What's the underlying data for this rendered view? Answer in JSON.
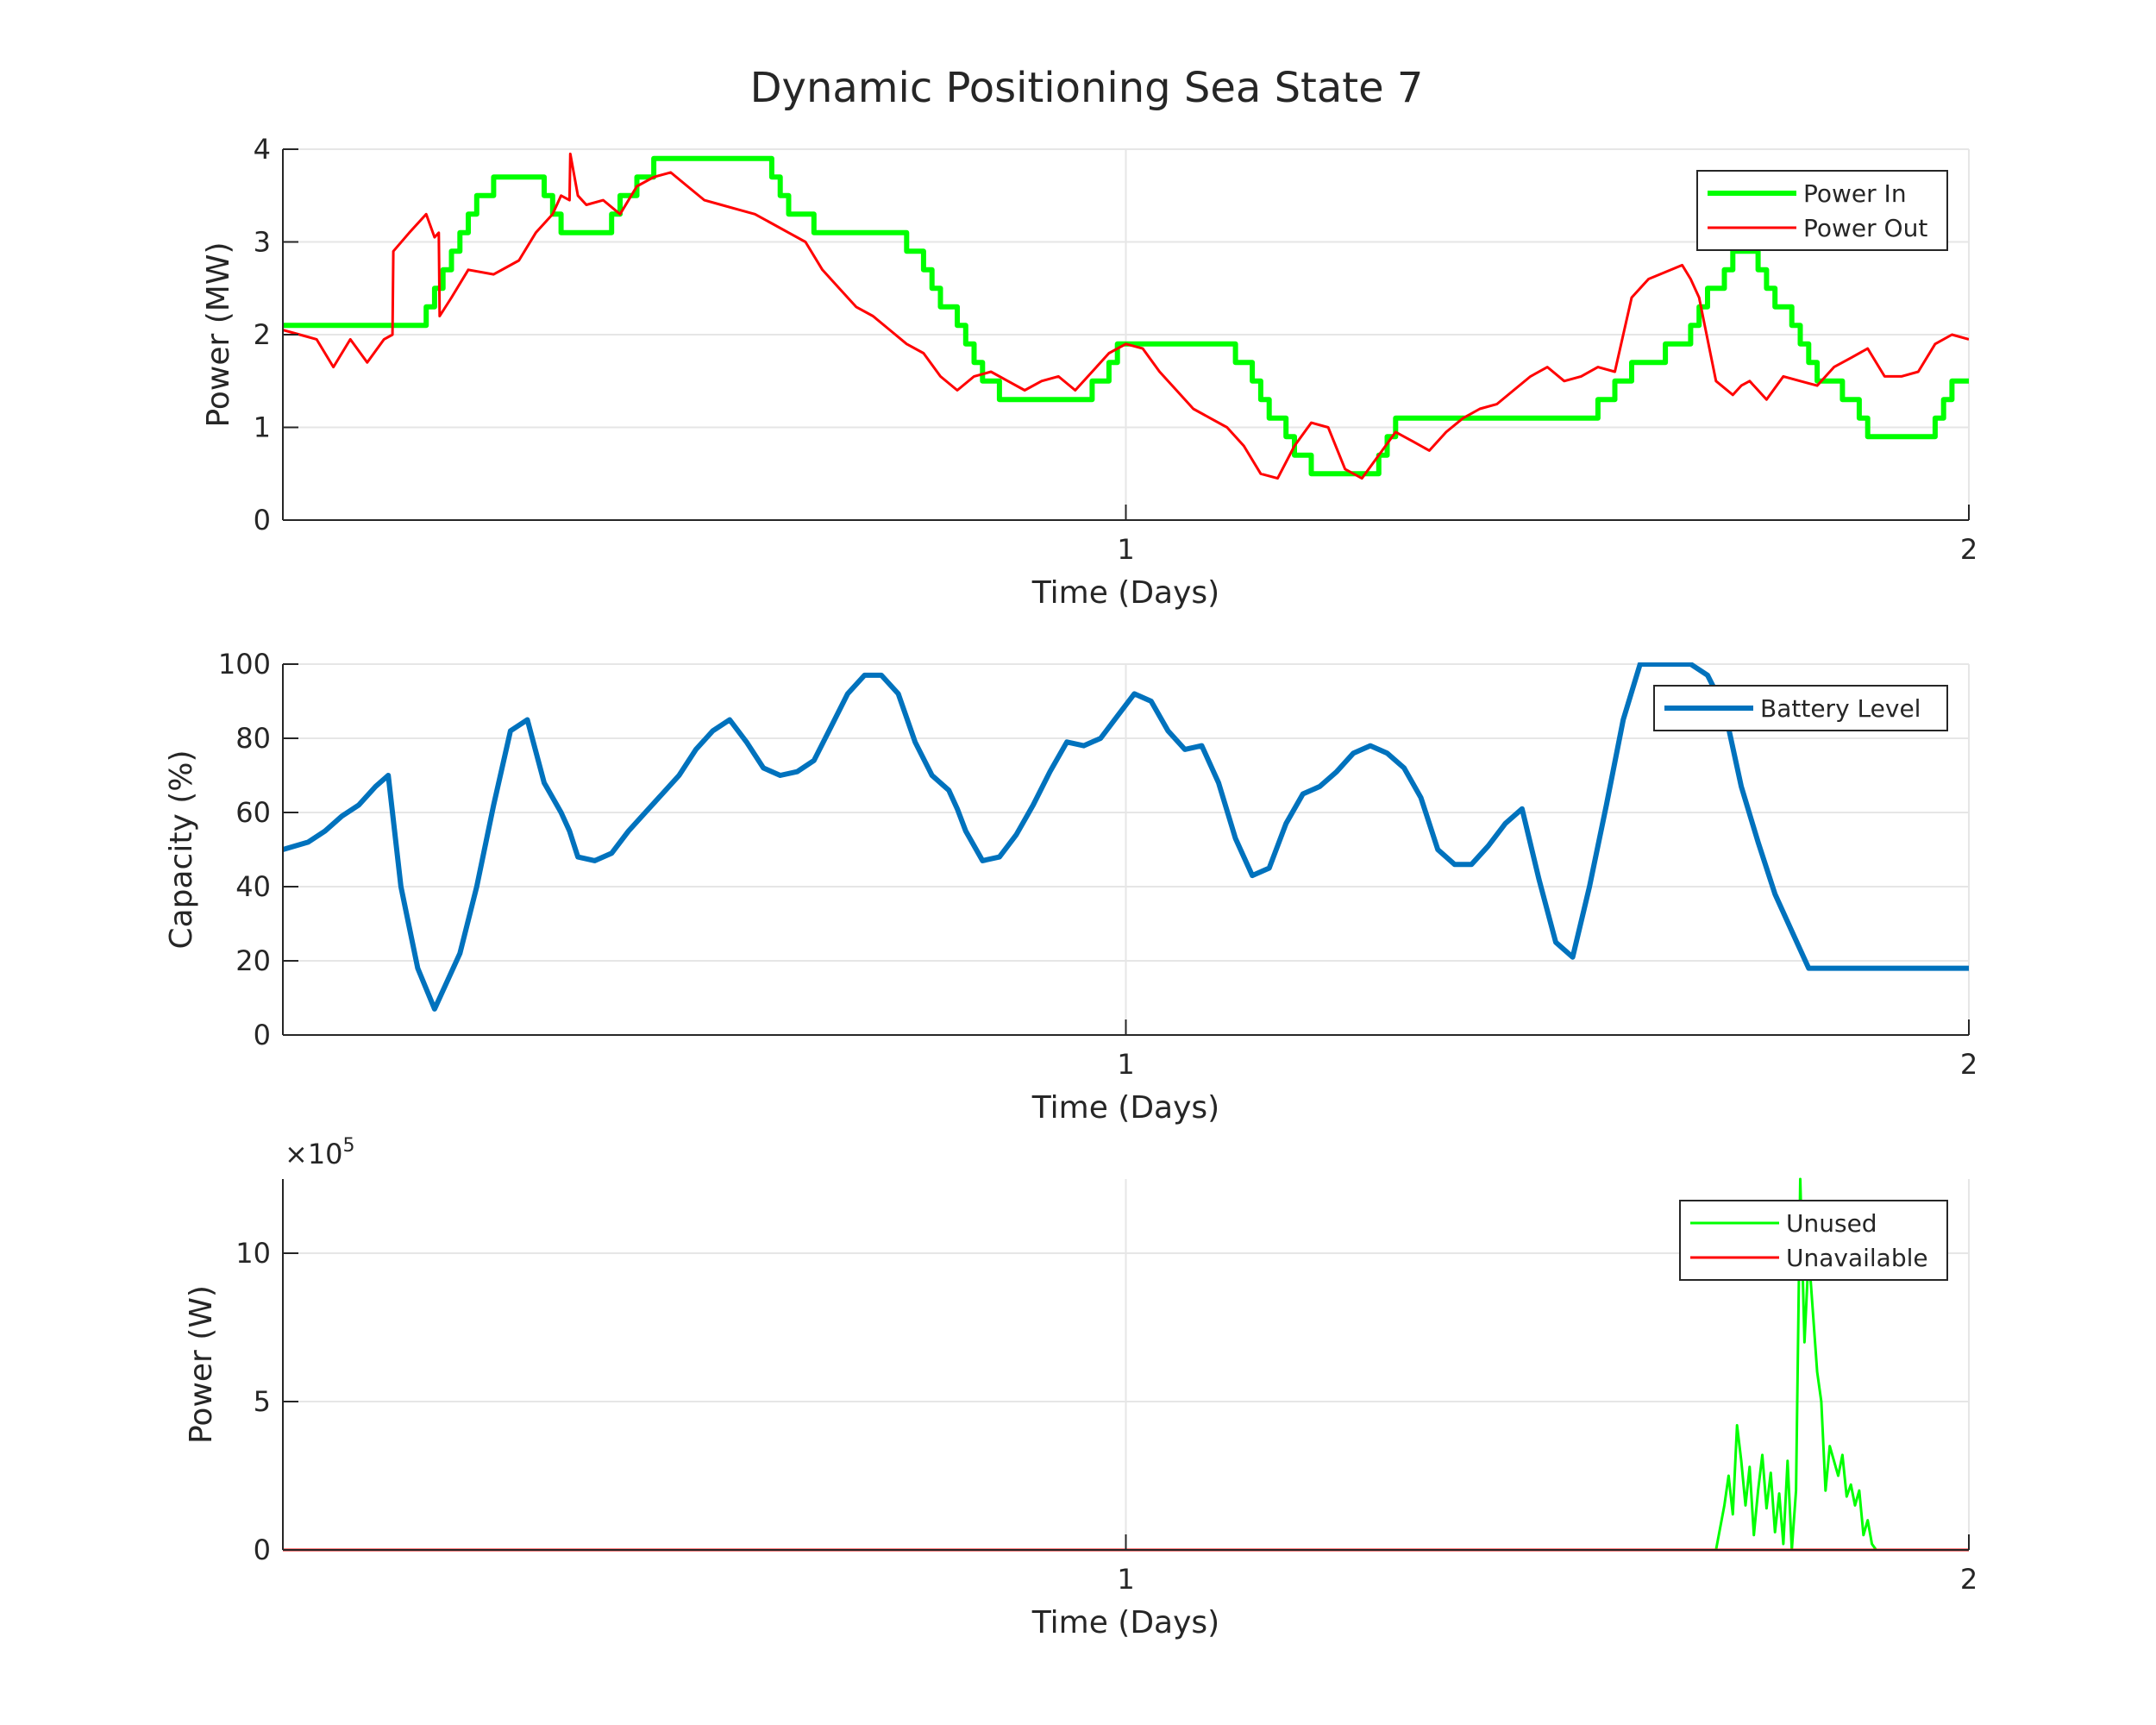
{
  "figure": {
    "title": "Dynamic Positioning Sea State 7"
  },
  "chart_data": [
    {
      "type": "line",
      "xlabel": "Time (Days)",
      "ylabel": "Power (MW)",
      "xlim": [
        0,
        2
      ],
      "ylim": [
        0,
        4
      ],
      "xticks": [
        "1",
        "2"
      ],
      "yticks": [
        "0",
        "1",
        "2",
        "3",
        "4"
      ],
      "grid": true,
      "legend_position": "top-right",
      "series": [
        {
          "name": "Power In",
          "color": "#00ff00",
          "style": "step",
          "x": [
            0,
            0.15,
            0.155,
            0.17,
            0.18,
            0.19,
            0.2,
            0.21,
            0.22,
            0.23,
            0.24,
            0.25,
            0.26,
            0.3,
            0.31,
            0.32,
            0.33,
            0.34,
            0.38,
            0.39,
            0.4,
            0.41,
            0.42,
            0.44,
            0.45,
            0.57,
            0.58,
            0.59,
            0.6,
            0.61,
            0.63,
            0.64,
            0.73,
            0.74,
            0.75,
            0.76,
            0.77,
            0.78,
            0.79,
            0.8,
            0.81,
            0.82,
            0.83,
            0.84,
            0.85,
            0.86,
            0.95,
            0.96,
            0.97,
            0.98,
            0.99,
            1.1,
            1.11,
            1.12,
            1.13,
            1.14,
            1.15,
            1.16,
            1.17,
            1.18,
            1.19,
            1.2,
            1.21,
            1.22,
            1.23,
            1.25,
            1.27,
            1.29,
            1.3,
            1.31,
            1.32,
            1.33,
            1.35,
            1.55,
            1.56,
            1.57,
            1.58,
            1.59,
            1.6,
            1.62,
            1.64,
            1.66,
            1.67,
            1.68,
            1.69,
            1.7,
            1.71,
            1.72,
            1.73,
            1.74,
            1.75,
            1.76,
            1.77,
            1.79,
            1.8,
            1.81,
            1.82,
            1.83,
            1.84,
            1.85,
            1.86,
            1.87,
            1.88,
            1.89,
            1.9,
            1.92,
            1.96,
            1.97,
            1.98,
            1.99,
            2.0
          ],
          "y": [
            2.1,
            2.1,
            2.1,
            2.3,
            2.5,
            2.7,
            2.9,
            3.1,
            3.3,
            3.5,
            3.5,
            3.7,
            3.7,
            3.7,
            3.5,
            3.3,
            3.1,
            3.1,
            3.1,
            3.3,
            3.5,
            3.5,
            3.7,
            3.9,
            3.9,
            3.9,
            3.7,
            3.5,
            3.3,
            3.3,
            3.1,
            3.1,
            3.1,
            2.9,
            2.9,
            2.7,
            2.5,
            2.3,
            2.3,
            2.1,
            1.9,
            1.7,
            1.5,
            1.5,
            1.3,
            1.3,
            1.3,
            1.5,
            1.5,
            1.7,
            1.9,
            1.9,
            1.9,
            1.9,
            1.7,
            1.7,
            1.5,
            1.3,
            1.1,
            1.1,
            0.9,
            0.7,
            0.7,
            0.5,
            0.5,
            0.5,
            0.5,
            0.5,
            0.7,
            0.9,
            1.1,
            1.1,
            1.1,
            1.1,
            1.3,
            1.3,
            1.5,
            1.5,
            1.7,
            1.7,
            1.9,
            1.9,
            2.1,
            2.3,
            2.5,
            2.5,
            2.7,
            2.9,
            2.9,
            2.9,
            2.7,
            2.5,
            2.3,
            2.1,
            1.9,
            1.7,
            1.5,
            1.5,
            1.5,
            1.3,
            1.3,
            1.1,
            0.9,
            0.9,
            0.9,
            0.9,
            1.1,
            1.3,
            1.5,
            1.5,
            1.5
          ]
        },
        {
          "name": "Power Out",
          "color": "#ff0000",
          "style": "line",
          "x": [
            0,
            0.02,
            0.04,
            0.06,
            0.08,
            0.1,
            0.12,
            0.13,
            0.131,
            0.15,
            0.17,
            0.18,
            0.185,
            0.186,
            0.2,
            0.22,
            0.25,
            0.28,
            0.3,
            0.32,
            0.33,
            0.34,
            0.341,
            0.35,
            0.36,
            0.38,
            0.4,
            0.42,
            0.44,
            0.46,
            0.48,
            0.5,
            0.52,
            0.54,
            0.56,
            0.58,
            0.6,
            0.62,
            0.64,
            0.66,
            0.68,
            0.7,
            0.72,
            0.74,
            0.76,
            0.78,
            0.8,
            0.82,
            0.84,
            0.86,
            0.88,
            0.9,
            0.92,
            0.94,
            0.96,
            0.98,
            1.0,
            1.02,
            1.04,
            1.06,
            1.08,
            1.1,
            1.12,
            1.14,
            1.16,
            1.18,
            1.2,
            1.22,
            1.24,
            1.26,
            1.28,
            1.3,
            1.32,
            1.34,
            1.36,
            1.38,
            1.4,
            1.42,
            1.44,
            1.46,
            1.48,
            1.5,
            1.52,
            1.54,
            1.56,
            1.58,
            1.6,
            1.62,
            1.66,
            1.67,
            1.68,
            1.7,
            1.72,
            1.73,
            1.74,
            1.75,
            1.76,
            1.78,
            1.8,
            1.82,
            1.84,
            1.86,
            1.88,
            1.9,
            1.92,
            1.94,
            1.96,
            1.98,
            2.0
          ],
          "y": [
            2.05,
            2.0,
            1.95,
            1.65,
            1.95,
            1.7,
            1.95,
            2.0,
            2.9,
            3.1,
            3.3,
            3.05,
            3.1,
            2.2,
            2.4,
            2.7,
            2.65,
            2.8,
            3.1,
            3.3,
            3.5,
            3.45,
            3.95,
            3.5,
            3.4,
            3.45,
            3.3,
            3.6,
            3.7,
            3.75,
            3.6,
            3.45,
            3.4,
            3.35,
            3.3,
            3.2,
            3.1,
            3.0,
            2.7,
            2.5,
            2.3,
            2.2,
            2.05,
            1.9,
            1.8,
            1.55,
            1.4,
            1.55,
            1.6,
            1.5,
            1.4,
            1.5,
            1.55,
            1.4,
            1.6,
            1.8,
            1.9,
            1.85,
            1.6,
            1.4,
            1.2,
            1.1,
            1.0,
            0.8,
            0.5,
            0.45,
            0.8,
            1.05,
            1.0,
            0.55,
            0.45,
            0.7,
            0.95,
            0.85,
            0.75,
            0.95,
            1.1,
            1.2,
            1.25,
            1.4,
            1.55,
            1.65,
            1.5,
            1.55,
            1.65,
            1.6,
            2.4,
            2.6,
            2.75,
            2.6,
            2.4,
            1.5,
            1.35,
            1.45,
            1.5,
            1.4,
            1.3,
            1.55,
            1.5,
            1.45,
            1.65,
            1.75,
            1.85,
            1.55,
            1.55,
            1.6,
            1.9,
            2.0,
            1.95
          ]
        }
      ]
    },
    {
      "type": "line",
      "xlabel": "Time (Days)",
      "ylabel": "Capacity (%)",
      "xlim": [
        0,
        2
      ],
      "ylim": [
        0,
        100
      ],
      "xticks": [
        "1",
        "2"
      ],
      "yticks": [
        "0",
        "20",
        "40",
        "60",
        "80",
        "100"
      ],
      "grid": true,
      "legend_position": "top-right",
      "series": [
        {
          "name": "Battery Level",
          "color": "#0072bd",
          "style": "line",
          "x": [
            0,
            0.03,
            0.05,
            0.07,
            0.09,
            0.11,
            0.125,
            0.14,
            0.16,
            0.18,
            0.19,
            0.21,
            0.23,
            0.25,
            0.27,
            0.29,
            0.31,
            0.33,
            0.34,
            0.35,
            0.37,
            0.39,
            0.41,
            0.43,
            0.45,
            0.47,
            0.49,
            0.51,
            0.53,
            0.55,
            0.57,
            0.59,
            0.61,
            0.63,
            0.65,
            0.67,
            0.69,
            0.71,
            0.73,
            0.75,
            0.77,
            0.79,
            0.8,
            0.81,
            0.83,
            0.85,
            0.87,
            0.89,
            0.91,
            0.93,
            0.95,
            0.97,
            0.99,
            1.01,
            1.03,
            1.05,
            1.07,
            1.09,
            1.11,
            1.13,
            1.15,
            1.17,
            1.19,
            1.21,
            1.23,
            1.25,
            1.27,
            1.29,
            1.31,
            1.33,
            1.35,
            1.37,
            1.39,
            1.41,
            1.43,
            1.45,
            1.47,
            1.49,
            1.51,
            1.53,
            1.55,
            1.57,
            1.59,
            1.61,
            1.63,
            1.65,
            1.67,
            1.69,
            1.71,
            1.73,
            1.75,
            1.77,
            1.79,
            1.81,
            1.83,
            1.85,
            1.87,
            1.89,
            1.91,
            1.93,
            1.95,
            1.97,
            2.0
          ],
          "y": [
            50,
            52,
            55,
            59,
            62,
            67,
            70,
            40,
            18,
            7,
            12,
            22,
            40,
            62,
            82,
            85,
            68,
            60,
            55,
            48,
            47,
            49,
            55,
            60,
            65,
            70,
            77,
            82,
            85,
            79,
            72,
            70,
            71,
            74,
            83,
            92,
            97,
            97,
            92,
            79,
            70,
            66,
            61,
            55,
            47,
            48,
            54,
            62,
            71,
            79,
            78,
            80,
            86,
            92,
            90,
            82,
            77,
            78,
            68,
            53,
            43,
            45,
            57,
            65,
            67,
            71,
            76,
            78,
            76,
            72,
            64,
            50,
            46,
            46,
            51,
            57,
            61,
            42,
            25,
            21,
            40,
            62,
            85,
            100,
            100,
            100,
            100,
            97,
            88,
            67,
            52,
            38,
            28,
            18,
            18,
            18,
            18,
            18,
            18,
            18,
            18,
            18,
            18
          ]
        }
      ]
    },
    {
      "type": "line",
      "xlabel": "Time (Days)",
      "ylabel": "Power (W)",
      "exponent_label": "×10^5",
      "exponent_base": "×10",
      "exponent_power": "5",
      "xlim": [
        0,
        2
      ],
      "ylim": [
        0,
        12.5
      ],
      "xticks": [
        "1",
        "2"
      ],
      "yticks": [
        "0",
        "5",
        "10"
      ],
      "grid": true,
      "legend_position": "top-right",
      "series": [
        {
          "name": "Unused",
          "color": "#00ff00",
          "style": "line",
          "x": [
            0,
            1.7,
            1.71,
            1.715,
            1.72,
            1.725,
            1.73,
            1.735,
            1.74,
            1.745,
            1.75,
            1.755,
            1.76,
            1.765,
            1.77,
            1.775,
            1.78,
            1.785,
            1.79,
            1.795,
            1.8,
            1.805,
            1.81,
            1.815,
            1.82,
            1.825,
            1.83,
            1.835,
            1.84,
            1.845,
            1.85,
            1.855,
            1.86,
            1.865,
            1.87,
            1.875,
            1.88,
            1.885,
            1.89,
            2.0
          ],
          "y": [
            0,
            0,
            1.5,
            2.5,
            1.2,
            4.2,
            3.0,
            1.5,
            2.8,
            0.5,
            2.0,
            3.2,
            1.4,
            2.6,
            0.6,
            1.9,
            0.2,
            3.0,
            0.0,
            2.0,
            12.5,
            7.0,
            10.0,
            8.0,
            6.0,
            5.0,
            2.0,
            3.5,
            3.0,
            2.5,
            3.2,
            1.8,
            2.2,
            1.5,
            2.0,
            0.5,
            1.0,
            0.2,
            0.0,
            0.0
          ]
        },
        {
          "name": "Unavailable",
          "color": "#ff0000",
          "style": "line",
          "x": [
            0,
            2
          ],
          "y": [
            0,
            0
          ]
        }
      ]
    }
  ]
}
